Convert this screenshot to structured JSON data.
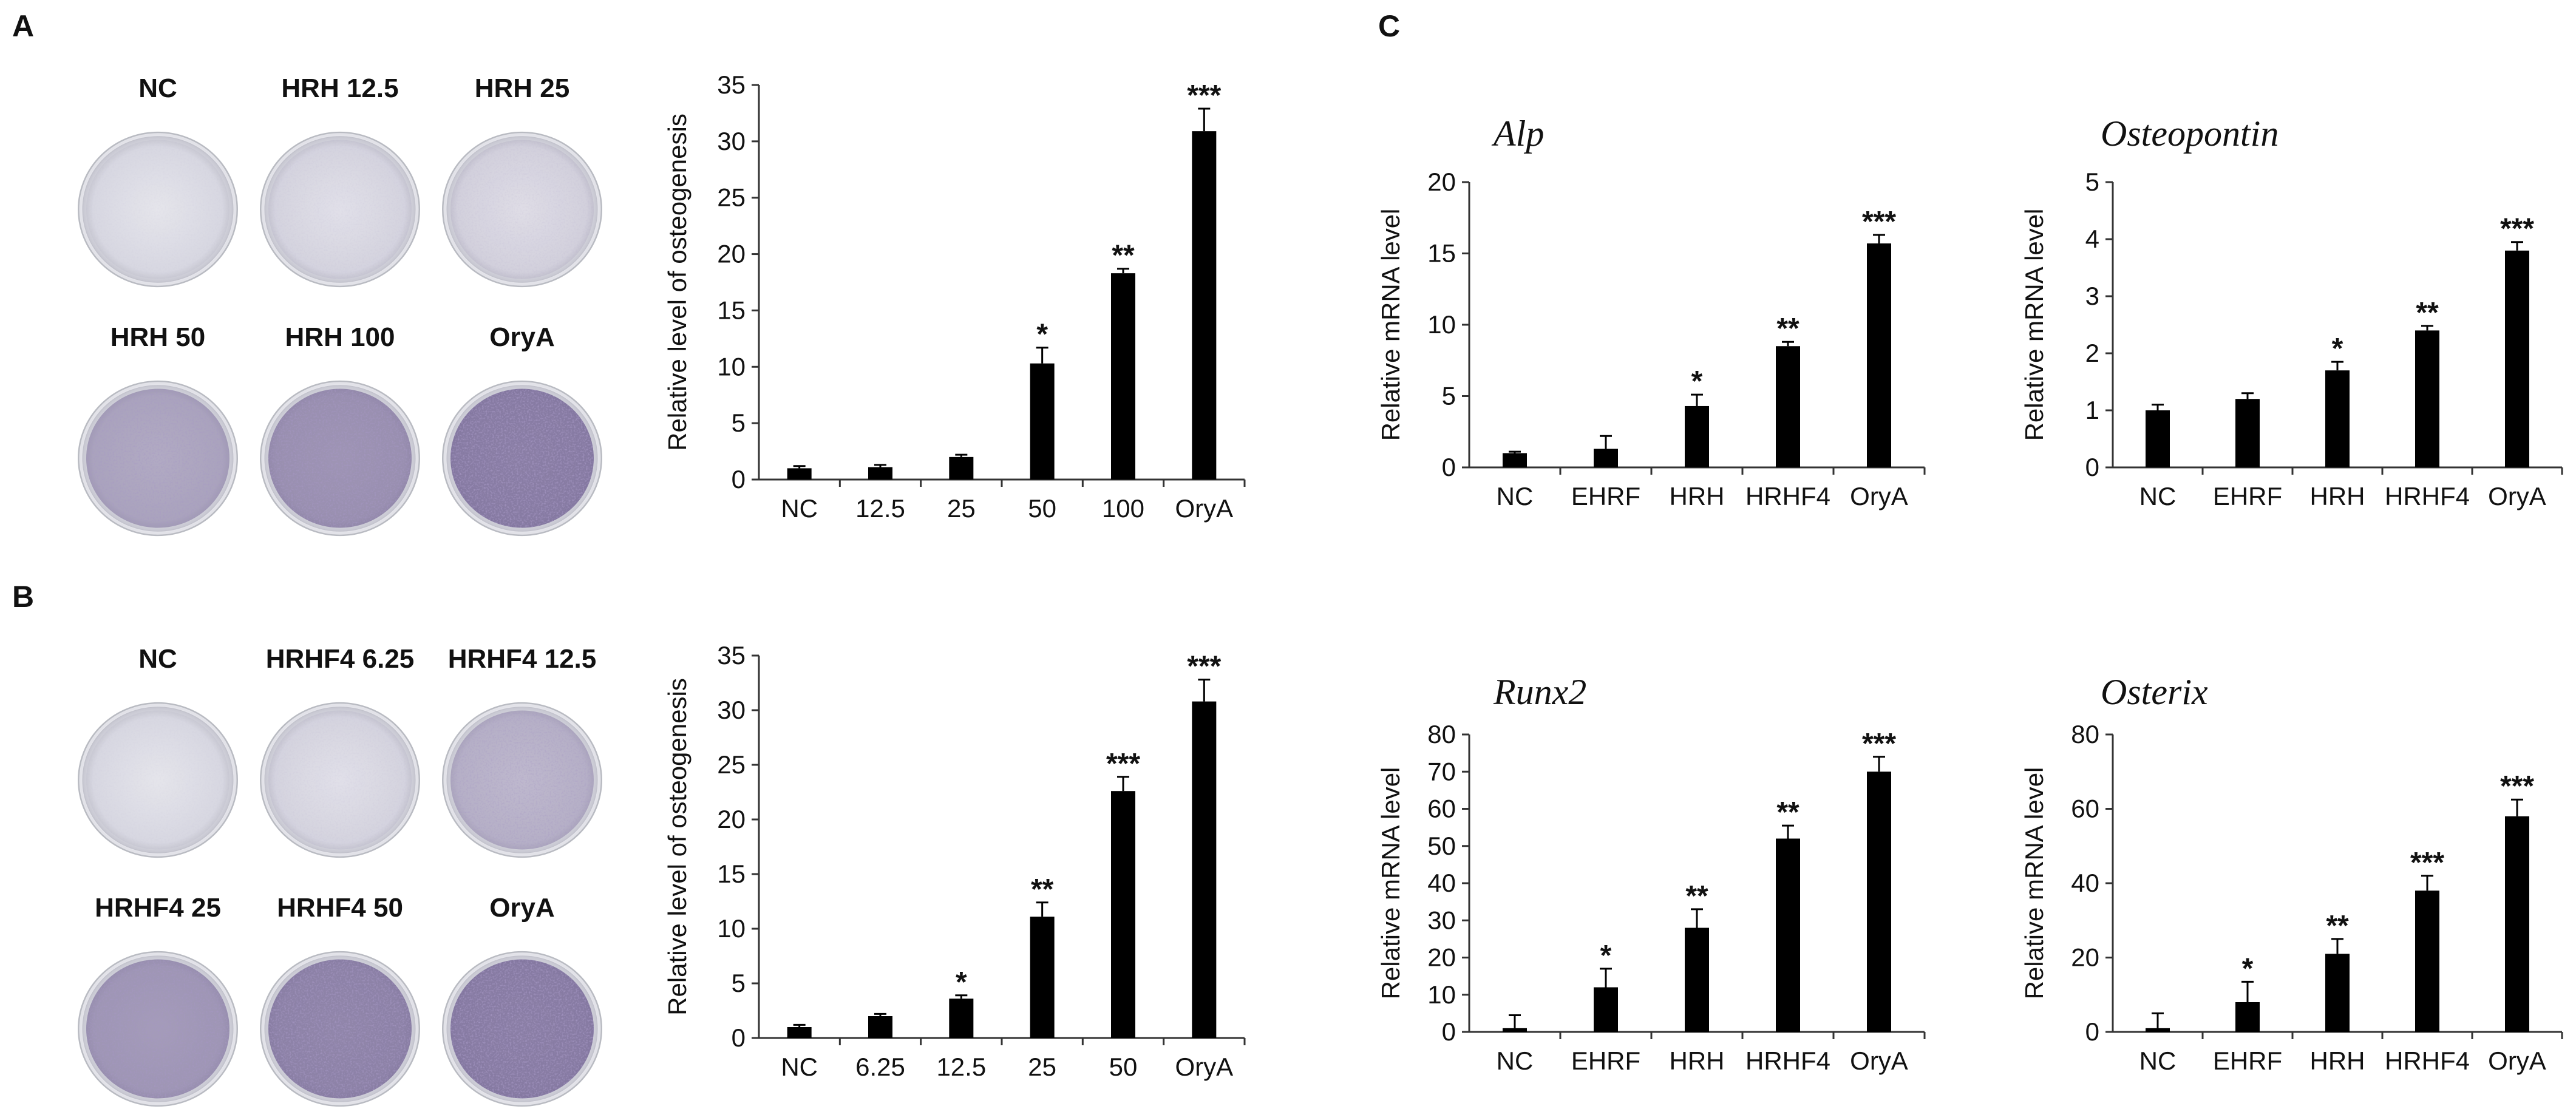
{
  "panels": {
    "A": {
      "letter": "A",
      "dishes": [
        "NC",
        "HRH 12.5",
        "HRH 25",
        "HRH 50",
        "HRH 100",
        "OryA"
      ],
      "dish_intensity": [
        0.05,
        0.08,
        0.1,
        0.45,
        0.6,
        0.75
      ]
    },
    "B": {
      "letter": "B",
      "dishes": [
        "NC",
        "HRHF4 6.25",
        "HRHF4 12.5",
        "HRHF4 25",
        "HRHF4 50",
        "OryA"
      ],
      "dish_intensity": [
        0.05,
        0.08,
        0.35,
        0.55,
        0.7,
        0.75
      ]
    },
    "C": {
      "letter": "C"
    }
  },
  "colors": {
    "bar": "#000000",
    "axis": "#333333",
    "dish_rim": "#b9bbc2",
    "dish_base": "#dcdce4",
    "dish_stain": "#6a5a8c"
  },
  "chart_data": [
    {
      "id": "A-bar",
      "type": "bar",
      "title": "",
      "xlabel": "",
      "ylabel": "Relative level of osteogenesis",
      "categories": [
        "NC",
        "12.5",
        "25",
        "50",
        "100",
        "OryA"
      ],
      "values": [
        1.0,
        1.1,
        2.0,
        10.3,
        18.3,
        30.9
      ],
      "errors": [
        0.2,
        0.2,
        0.2,
        1.4,
        0.4,
        2.0
      ],
      "significance": [
        "",
        "",
        "",
        "*",
        "**",
        "***"
      ],
      "ylim": [
        0,
        35
      ],
      "yticks": [
        0,
        5,
        10,
        15,
        20,
        25,
        30,
        35
      ]
    },
    {
      "id": "B-bar",
      "type": "bar",
      "title": "",
      "xlabel": "",
      "ylabel": "Relative level of osteogenesis",
      "categories": [
        "NC",
        "6.25",
        "12.5",
        "25",
        "50",
        "OryA"
      ],
      "values": [
        1.0,
        2.0,
        3.6,
        11.1,
        22.6,
        30.8
      ],
      "errors": [
        0.2,
        0.2,
        0.3,
        1.3,
        1.3,
        2.0
      ],
      "significance": [
        "",
        "",
        "*",
        "**",
        "***",
        "***"
      ],
      "ylim": [
        0,
        35
      ],
      "yticks": [
        0,
        5,
        10,
        15,
        20,
        25,
        30,
        35
      ]
    },
    {
      "id": "C-alp",
      "type": "bar",
      "title": "Alp",
      "xlabel": "",
      "ylabel": "Relative mRNA level",
      "categories": [
        "NC",
        "EHRF",
        "HRH",
        "HRHF4",
        "OryA"
      ],
      "values": [
        1.0,
        1.3,
        4.3,
        8.5,
        15.7
      ],
      "errors": [
        0.1,
        0.9,
        0.8,
        0.3,
        0.6
      ],
      "significance": [
        "",
        "",
        "*",
        "**",
        "***"
      ],
      "ylim": [
        0,
        20
      ],
      "yticks": [
        0,
        5,
        10,
        15,
        20
      ]
    },
    {
      "id": "C-osteopontin",
      "type": "bar",
      "title": "Osteopontin",
      "xlabel": "",
      "ylabel": "Relative mRNA level",
      "categories": [
        "NC",
        "EHRF",
        "HRH",
        "HRHF4",
        "OryA"
      ],
      "values": [
        1.0,
        1.2,
        1.7,
        2.4,
        3.8
      ],
      "errors": [
        0.1,
        0.1,
        0.15,
        0.08,
        0.15
      ],
      "significance": [
        "",
        "",
        "*",
        "**",
        "***"
      ],
      "ylim": [
        0,
        5
      ],
      "yticks": [
        0,
        1,
        2,
        3,
        4,
        5
      ]
    },
    {
      "id": "C-runx2",
      "type": "bar",
      "title": "Runx2",
      "xlabel": "",
      "ylabel": "Relative mRNA level",
      "categories": [
        "NC",
        "EHRF",
        "HRH",
        "HRHF4",
        "OryA"
      ],
      "values": [
        1.0,
        12.0,
        28.0,
        52.0,
        70.0
      ],
      "errors": [
        3.5,
        5.0,
        5.0,
        3.5,
        4.0
      ],
      "significance": [
        "",
        "*",
        "**",
        "**",
        "***"
      ],
      "ylim": [
        0,
        80
      ],
      "yticks": [
        0,
        10,
        20,
        30,
        40,
        50,
        60,
        70,
        80
      ]
    },
    {
      "id": "C-osterix",
      "type": "bar",
      "title": "Osterix",
      "xlabel": "",
      "ylabel": "Relative mRNA level",
      "categories": [
        "NC",
        "EHRF",
        "HRH",
        "HRHF4",
        "OryA"
      ],
      "values": [
        1.0,
        8.0,
        21.0,
        38.0,
        58.0
      ],
      "errors": [
        4.0,
        5.5,
        4.0,
        4.0,
        4.5
      ],
      "significance": [
        "",
        "*",
        "**",
        "***",
        "***"
      ],
      "ylim": [
        0,
        80
      ],
      "yticks": [
        0,
        20,
        40,
        60,
        80
      ]
    }
  ]
}
